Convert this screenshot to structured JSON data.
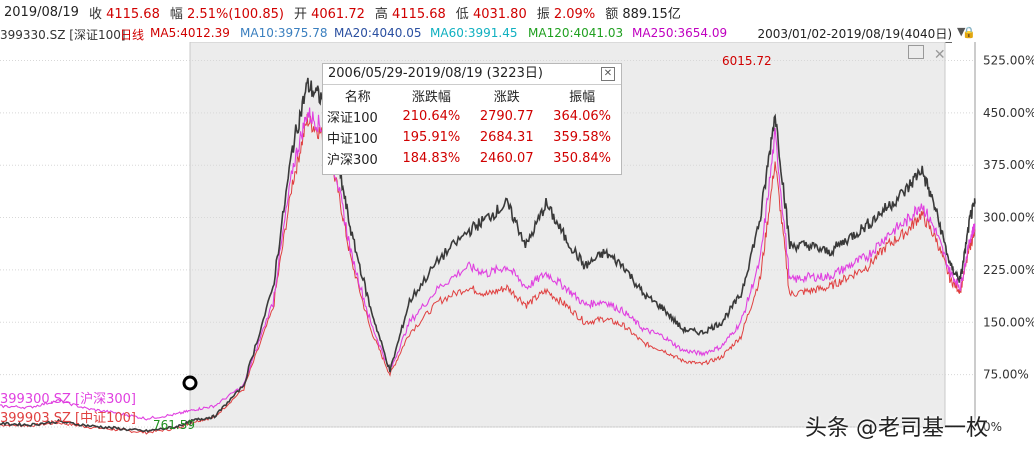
{
  "header": {
    "date": "2019/08/19",
    "close_label": "收",
    "close_value": "4115.68",
    "change_label": "幅",
    "change_value": "2.51%(100.85)",
    "open_label": "开",
    "open_value": "4061.72",
    "high_label": "高",
    "high_value": "4115.68",
    "low_label": "低",
    "low_value": "4031.80",
    "amplitude_label": "振",
    "amplitude_value": "2.09%",
    "turnover_label": "额",
    "turnover_value": "889.15亿"
  },
  "ma_bar": {
    "code": "399330.SZ [深证100]",
    "period": "日线",
    "ma5": "MA5:4012.39",
    "ma10": "MA10:3975.78",
    "ma20": "MA20:4040.05",
    "ma60": "MA60:3991.45",
    "ma120": "MA120:4041.03",
    "ma250": "MA250:3654.09",
    "date_range": "2003/01/02-2019/08/19(4040日)"
  },
  "colors": {
    "shenzheng100": "#3a3a3a",
    "hushen300": "#e040e0",
    "zhongzheng100": "#e04040",
    "up": "#d00000",
    "highlight_bg": "#ececec"
  },
  "stats_table": {
    "title": "2006/05/29-2019/08/19 (3223日)",
    "headers": [
      "名称",
      "涨跌幅",
      "涨跌",
      "振幅"
    ],
    "rows": [
      [
        "深证100",
        "210.64%",
        "2790.77",
        "364.06%"
      ],
      [
        "中证100",
        "195.91%",
        "2684.31",
        "359.58%"
      ],
      [
        "沪深300",
        "184.83%",
        "2460.07",
        "350.84%"
      ]
    ]
  },
  "annotations": {
    "high": "6015.72",
    "low": "761.59",
    "series_label_hs300": "399300.SZ [沪深300]",
    "series_label_zz100": "399903.SZ [中证100]"
  },
  "watermark": "头条 @老司基一枚",
  "chart_data": {
    "type": "line",
    "yaxis_ticks": [
      "0%",
      "75.00%",
      "150.00%",
      "225.00%",
      "300.00%",
      "375.00%",
      "450.00%",
      "525.00%"
    ],
    "ylim": [
      0,
      540
    ],
    "x_start": "2003/01/02",
    "x_end": "2019/08/19",
    "highlight_range": [
      "2006/05/29",
      "2019/08/19"
    ],
    "series": [
      {
        "name": "399330.SZ [深证100]",
        "points": [
          [
            0,
            5
          ],
          [
            0.03,
            3
          ],
          [
            0.06,
            8
          ],
          [
            0.09,
            2
          ],
          [
            0.12,
            -2
          ],
          [
            0.15,
            -6
          ],
          [
            0.18,
            0
          ],
          [
            0.2,
            10
          ],
          [
            0.22,
            15
          ],
          [
            0.25,
            60
          ],
          [
            0.28,
            200
          ],
          [
            0.3,
            400
          ],
          [
            0.315,
            490
          ],
          [
            0.33,
            470
          ],
          [
            0.345,
            390
          ],
          [
            0.36,
            280
          ],
          [
            0.38,
            170
          ],
          [
            0.4,
            80
          ],
          [
            0.42,
            180
          ],
          [
            0.45,
            240
          ],
          [
            0.48,
            280
          ],
          [
            0.5,
            300
          ],
          [
            0.52,
            320
          ],
          [
            0.54,
            260
          ],
          [
            0.56,
            320
          ],
          [
            0.58,
            270
          ],
          [
            0.6,
            230
          ],
          [
            0.62,
            250
          ],
          [
            0.64,
            230
          ],
          [
            0.66,
            190
          ],
          [
            0.68,
            170
          ],
          [
            0.7,
            140
          ],
          [
            0.72,
            135
          ],
          [
            0.74,
            150
          ],
          [
            0.76,
            190
          ],
          [
            0.78,
            300
          ],
          [
            0.795,
            450
          ],
          [
            0.81,
            260
          ],
          [
            0.83,
            260
          ],
          [
            0.85,
            250
          ],
          [
            0.87,
            270
          ],
          [
            0.89,
            290
          ],
          [
            0.91,
            315
          ],
          [
            0.93,
            340
          ],
          [
            0.945,
            370
          ],
          [
            0.96,
            310
          ],
          [
            0.975,
            230
          ],
          [
            0.985,
            210
          ],
          [
            0.995,
            300
          ],
          [
            1.0,
            320
          ]
        ]
      },
      {
        "name": "399300.SZ [沪深300]",
        "points": [
          [
            0,
            30
          ],
          [
            0.03,
            28
          ],
          [
            0.06,
            38
          ],
          [
            0.09,
            26
          ],
          [
            0.12,
            20
          ],
          [
            0.15,
            12
          ],
          [
            0.18,
            18
          ],
          [
            0.2,
            25
          ],
          [
            0.22,
            30
          ],
          [
            0.25,
            60
          ],
          [
            0.28,
            180
          ],
          [
            0.3,
            370
          ],
          [
            0.315,
            450
          ],
          [
            0.33,
            430
          ],
          [
            0.345,
            360
          ],
          [
            0.36,
            250
          ],
          [
            0.38,
            150
          ],
          [
            0.4,
            80
          ],
          [
            0.42,
            150
          ],
          [
            0.45,
            200
          ],
          [
            0.48,
            230
          ],
          [
            0.5,
            220
          ],
          [
            0.52,
            230
          ],
          [
            0.54,
            200
          ],
          [
            0.56,
            220
          ],
          [
            0.58,
            200
          ],
          [
            0.6,
            175
          ],
          [
            0.62,
            180
          ],
          [
            0.64,
            165
          ],
          [
            0.66,
            140
          ],
          [
            0.68,
            130
          ],
          [
            0.7,
            110
          ],
          [
            0.72,
            105
          ],
          [
            0.74,
            115
          ],
          [
            0.76,
            150
          ],
          [
            0.78,
            240
          ],
          [
            0.795,
            420
          ],
          [
            0.81,
            210
          ],
          [
            0.83,
            215
          ],
          [
            0.85,
            215
          ],
          [
            0.87,
            230
          ],
          [
            0.89,
            245
          ],
          [
            0.91,
            275
          ],
          [
            0.93,
            295
          ],
          [
            0.945,
            320
          ],
          [
            0.96,
            280
          ],
          [
            0.975,
            220
          ],
          [
            0.985,
            200
          ],
          [
            0.995,
            270
          ],
          [
            1.0,
            290
          ]
        ]
      },
      {
        "name": "399903.SZ [中证100]",
        "points": [
          [
            0,
            3
          ],
          [
            0.03,
            2
          ],
          [
            0.06,
            6
          ],
          [
            0.09,
            0
          ],
          [
            0.12,
            -4
          ],
          [
            0.15,
            -8
          ],
          [
            0.18,
            -2
          ],
          [
            0.2,
            8
          ],
          [
            0.22,
            14
          ],
          [
            0.25,
            55
          ],
          [
            0.28,
            170
          ],
          [
            0.3,
            350
          ],
          [
            0.315,
            440
          ],
          [
            0.33,
            420
          ],
          [
            0.345,
            350
          ],
          [
            0.36,
            240
          ],
          [
            0.38,
            140
          ],
          [
            0.4,
            75
          ],
          [
            0.42,
            135
          ],
          [
            0.45,
            180
          ],
          [
            0.48,
            200
          ],
          [
            0.5,
            190
          ],
          [
            0.52,
            200
          ],
          [
            0.54,
            175
          ],
          [
            0.56,
            195
          ],
          [
            0.58,
            175
          ],
          [
            0.6,
            150
          ],
          [
            0.62,
            155
          ],
          [
            0.64,
            145
          ],
          [
            0.66,
            120
          ],
          [
            0.68,
            110
          ],
          [
            0.7,
            95
          ],
          [
            0.72,
            90
          ],
          [
            0.74,
            100
          ],
          [
            0.76,
            130
          ],
          [
            0.78,
            215
          ],
          [
            0.795,
            380
          ],
          [
            0.81,
            190
          ],
          [
            0.83,
            195
          ],
          [
            0.85,
            200
          ],
          [
            0.87,
            215
          ],
          [
            0.89,
            230
          ],
          [
            0.91,
            260
          ],
          [
            0.93,
            280
          ],
          [
            0.945,
            305
          ],
          [
            0.96,
            270
          ],
          [
            0.975,
            210
          ],
          [
            0.985,
            195
          ],
          [
            0.995,
            260
          ],
          [
            1.0,
            280
          ]
        ]
      }
    ]
  }
}
